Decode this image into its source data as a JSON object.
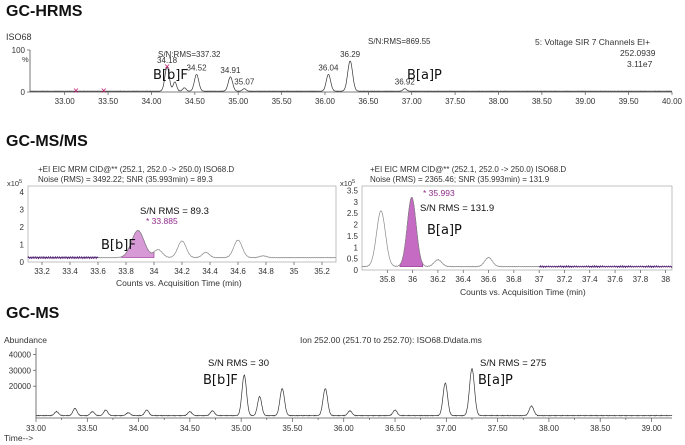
{
  "panels": [
    {
      "id": "hrms",
      "section_title": "GC-HRMS",
      "sample_label": "ISO68",
      "header_right": [
        "5: Voltage SIR 7 Channels EI+",
        "252.0939",
        "3.11e7"
      ],
      "y_label": "%",
      "y_ticks": [
        {
          "v": 0,
          "t": "0"
        },
        {
          "v": 100,
          "t": "100"
        }
      ],
      "peak_labels": [
        {
          "x": 34.18,
          "text": "34.18"
        },
        {
          "x": 34.52,
          "text": "34.52"
        },
        {
          "x": 34.91,
          "text": "34.91"
        },
        {
          "x": 35.07,
          "text": "35.07"
        },
        {
          "x": 36.04,
          "text": "36.04"
        },
        {
          "x": 36.29,
          "text": "36.29"
        },
        {
          "x": 36.92,
          "text": "36.92"
        }
      ],
      "sn_labels": [
        {
          "text": "S/N:RMS=337.32"
        },
        {
          "text": "S/N:RMS=869.55"
        }
      ],
      "compound_labels": [
        "B[b]F",
        "B[a]P"
      ]
    },
    {
      "id": "msms1",
      "section_title": "GC-MS/MS",
      "header": [
        "+EI EIC MRM CID@** (252.1, 252.0 -> 250.0) ISO68.D",
        "Noise (RMS) = 3492.22; SNR (35.993min) = 89.3"
      ],
      "scale_label": "x10",
      "scale_exp": "5",
      "y_ticks": [
        {
          "v": 0,
          "t": "0"
        },
        {
          "v": 1,
          "t": "1"
        },
        {
          "v": 2,
          "t": "2"
        },
        {
          "v": 3,
          "t": "3"
        },
        {
          "v": 4,
          "t": "4"
        }
      ],
      "x_label": "Counts vs. Acquisition Time (min)",
      "peak_label": "* 33.885",
      "sn_label": "S/N RMS = 89.3",
      "compound_label": "B[b]F"
    },
    {
      "id": "msms2",
      "header": [
        "+EI EIC MRM CID@** (252.1, 252.0 -> 250.0) ISO68.D",
        "Noise (RMS) = 2365.46; SNR (35.993min) = 131.9"
      ],
      "scale_label": "x10",
      "scale_exp": "5",
      "y_ticks": [
        {
          "v": 0,
          "t": "0"
        },
        {
          "v": 0.5,
          "t": "0.5"
        },
        {
          "v": 1,
          "t": "1"
        },
        {
          "v": 1.5,
          "t": "1.5"
        },
        {
          "v": 2,
          "t": "2"
        },
        {
          "v": 2.5,
          "t": "2.5"
        },
        {
          "v": 3,
          "t": "3"
        },
        {
          "v": 3.5,
          "t": "3.5"
        }
      ],
      "x_label": "Counts vs. Acquisition Time (min)",
      "peak_label": "* 35.993",
      "sn_label": "S/N RMS = 131.9",
      "compound_label": "B[a]P"
    },
    {
      "id": "gcms",
      "section_title": "GC-MS",
      "y_label": "Abundance",
      "x_label": "Time-->",
      "header": "Ion 252.00 (251.70 to 252.70): ISO68.D\\data.ms",
      "y_ticks": [
        {
          "v": 20000,
          "t": "20000"
        },
        {
          "v": 30000,
          "t": "30000"
        },
        {
          "v": 40000,
          "t": "40000"
        }
      ],
      "sn_labels": [
        "S/N RMS = 30",
        "S/N RMS = 275"
      ],
      "compound_labels": [
        "B[b]F",
        "B[a]P"
      ]
    }
  ],
  "chart_data": [
    {
      "type": "line",
      "name": "GC-HRMS SIR chromatogram",
      "x_unit": "min",
      "xlim": [
        32.6,
        40.0
      ],
      "x_ticks": [
        33.0,
        33.5,
        34.0,
        34.5,
        35.0,
        35.5,
        36.0,
        36.5,
        37.0,
        37.5,
        38.0,
        38.5,
        39.0,
        39.5,
        40.0
      ],
      "x_tick_labels": [
        "33.00",
        "33.50",
        "34.00",
        "34.50",
        "35.00",
        "35.50",
        "36.00",
        "36.50",
        "37.00",
        "37.50",
        "38.00",
        "38.50",
        "39.00",
        "39.50",
        "40.00"
      ],
      "ylim": [
        0,
        100
      ],
      "baseline": 2,
      "peaks": [
        {
          "x": 34.18,
          "h": 58,
          "w": 0.025
        },
        {
          "x": 34.27,
          "h": 22,
          "w": 0.02
        },
        {
          "x": 34.38,
          "h": 8,
          "w": 0.02
        },
        {
          "x": 34.52,
          "h": 40,
          "w": 0.025
        },
        {
          "x": 34.91,
          "h": 34,
          "w": 0.025
        },
        {
          "x": 35.07,
          "h": 6,
          "w": 0.02
        },
        {
          "x": 36.04,
          "h": 40,
          "w": 0.025
        },
        {
          "x": 36.29,
          "h": 72,
          "w": 0.028
        },
        {
          "x": 36.92,
          "h": 6,
          "w": 0.02
        }
      ],
      "markers": [
        33.13,
        33.45,
        34.18
      ]
    },
    {
      "type": "area",
      "name": "GC-MS/MS B[b]F window",
      "x_unit": "min",
      "xlim": [
        33.1,
        35.3
      ],
      "x_ticks": [
        33.2,
        33.4,
        33.6,
        33.8,
        34.0,
        34.2,
        34.4,
        34.6,
        34.8,
        35.0,
        35.2
      ],
      "x_tick_labels": [
        "33.2",
        "33.4",
        "33.6",
        "33.8",
        "34",
        "34.2",
        "34.4",
        "34.6",
        "34.8",
        "35",
        "35.2"
      ],
      "ylim": [
        0,
        4
      ],
      "baseline": 0.25,
      "shaded_peak": {
        "x": 33.885,
        "h": 1.55,
        "w": 0.045,
        "from": 33.77,
        "to": 34.0
      },
      "peaks": [
        {
          "x": 33.885,
          "h": 1.55,
          "w": 0.045
        },
        {
          "x": 34.03,
          "h": 0.45,
          "w": 0.03
        },
        {
          "x": 34.2,
          "h": 0.95,
          "w": 0.03
        },
        {
          "x": 34.37,
          "h": 0.3,
          "w": 0.025
        },
        {
          "x": 34.6,
          "h": 1.0,
          "w": 0.03
        },
        {
          "x": 34.78,
          "h": 0.1,
          "w": 0.025
        }
      ]
    },
    {
      "type": "area",
      "name": "GC-MS/MS B[a]P window",
      "x_unit": "min",
      "xlim": [
        35.6,
        38.05
      ],
      "x_ticks": [
        35.8,
        36.0,
        36.2,
        36.4,
        36.6,
        36.8,
        37.0,
        37.2,
        37.4,
        37.6,
        37.8,
        38.0
      ],
      "x_tick_labels": [
        "35.8",
        "36",
        "36.2",
        "36.4",
        "36.6",
        "36.8",
        "37",
        "37.2",
        "37.4",
        "37.6",
        "37.8",
        "38"
      ],
      "ylim": [
        0,
        3.7
      ],
      "baseline": 0.15,
      "shaded_peak": {
        "x": 35.993,
        "h": 3.05,
        "w": 0.035,
        "from": 35.9,
        "to": 36.08
      },
      "peaks": [
        {
          "x": 35.75,
          "h": 2.45,
          "w": 0.035
        },
        {
          "x": 35.993,
          "h": 3.05,
          "w": 0.035
        },
        {
          "x": 36.2,
          "h": 0.3,
          "w": 0.03
        },
        {
          "x": 36.6,
          "h": 0.4,
          "w": 0.03
        }
      ]
    },
    {
      "type": "line",
      "name": "GC-MS Ion 252 chromatogram",
      "x_unit": "min",
      "xlim": [
        33.0,
        39.2
      ],
      "x_ticks": [
        33.0,
        33.25,
        33.5,
        33.75,
        34.0,
        34.25,
        34.5,
        34.75,
        35.0,
        35.25,
        35.5,
        35.75,
        36.0,
        36.25,
        36.5,
        36.75,
        37.0,
        37.25,
        37.5,
        37.75,
        38.0,
        38.25,
        38.5,
        38.75,
        39.0
      ],
      "x_tick_labels": [
        "33.00",
        "33.25",
        "33.50",
        "33.75",
        "34.00",
        "34.25",
        "34.50",
        "34.75",
        "35.00",
        "35.25",
        "35.50",
        "35.75",
        "36.00",
        "36.25",
        "36.50",
        "36.75",
        "37.00",
        "37.25",
        "37.50",
        "37.75",
        "38.00",
        "38.25",
        "38.50",
        "38.75",
        "39.00"
      ],
      "ylim": [
        0,
        44000
      ],
      "baseline": 1500,
      "peaks": [
        {
          "x": 33.2,
          "h": 2500,
          "w": 0.02
        },
        {
          "x": 33.38,
          "h": 4500,
          "w": 0.02
        },
        {
          "x": 33.55,
          "h": 2500,
          "w": 0.02
        },
        {
          "x": 33.68,
          "h": 3500,
          "w": 0.02
        },
        {
          "x": 33.9,
          "h": 1800,
          "w": 0.02
        },
        {
          "x": 34.08,
          "h": 3500,
          "w": 0.02
        },
        {
          "x": 34.5,
          "h": 2500,
          "w": 0.02
        },
        {
          "x": 34.72,
          "h": 3000,
          "w": 0.02
        },
        {
          "x": 35.03,
          "h": 25500,
          "w": 0.022
        },
        {
          "x": 35.18,
          "h": 12000,
          "w": 0.02
        },
        {
          "x": 35.4,
          "h": 17000,
          "w": 0.022
        },
        {
          "x": 35.82,
          "h": 17000,
          "w": 0.022
        },
        {
          "x": 36.06,
          "h": 3000,
          "w": 0.02
        },
        {
          "x": 36.5,
          "h": 3500,
          "w": 0.02
        },
        {
          "x": 36.99,
          "h": 20500,
          "w": 0.022
        },
        {
          "x": 37.25,
          "h": 29500,
          "w": 0.024
        },
        {
          "x": 37.83,
          "h": 6000,
          "w": 0.022
        }
      ]
    }
  ]
}
